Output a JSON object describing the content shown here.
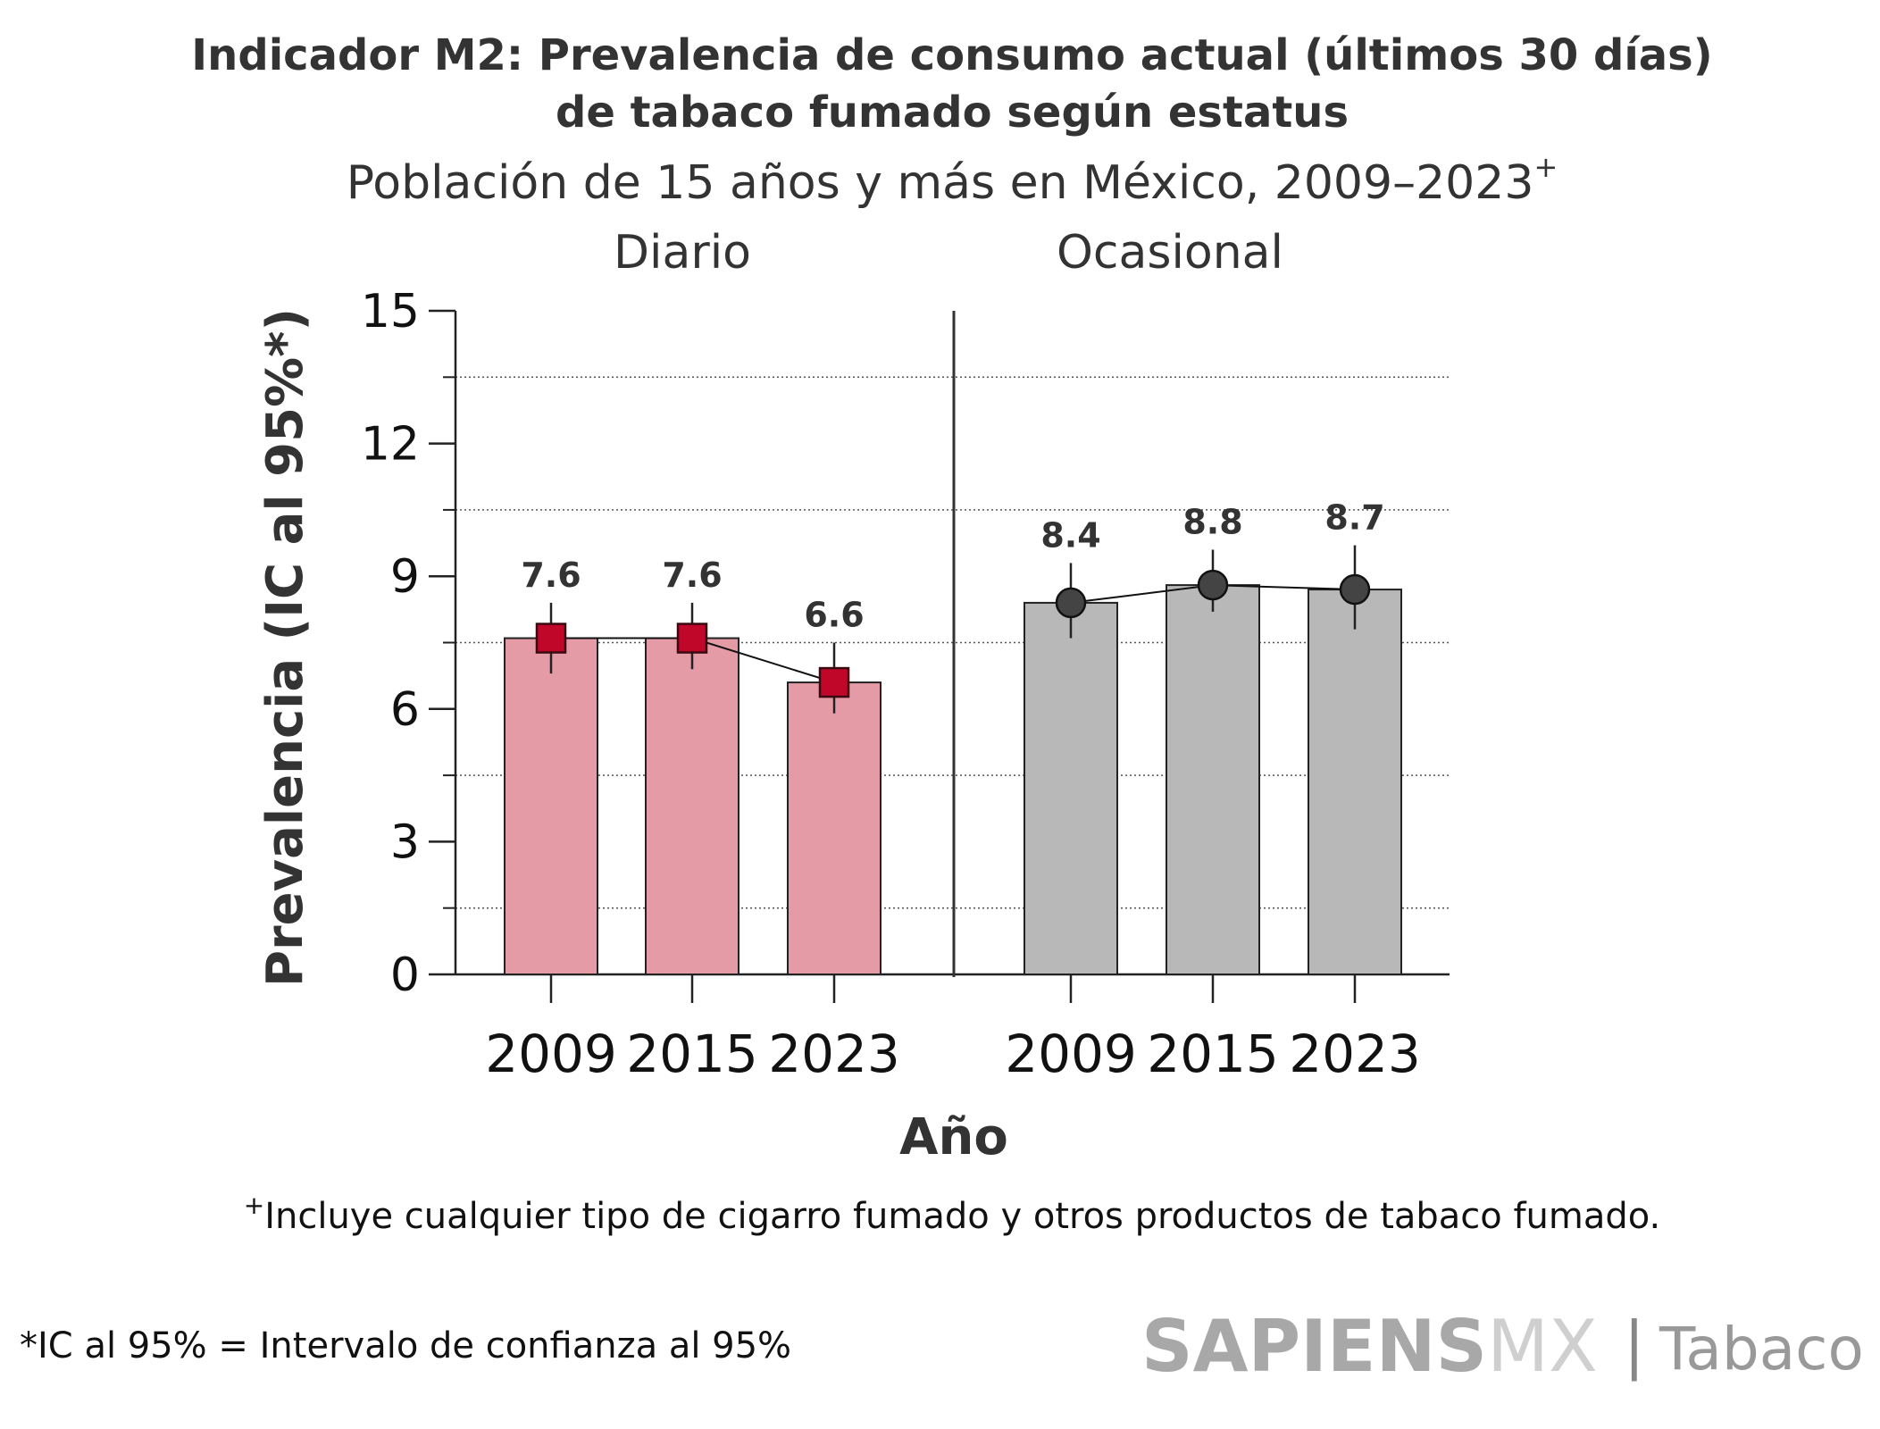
{
  "chart_data": {
    "type": "bar",
    "title": [
      "Indicador M2: Prevalencia de consumo actual (últimos 30 días)",
      "de tabaco fumado según estatus"
    ],
    "subtitle": "Población de 15 años y más en México, 2009–2023",
    "subtitle_mark": "+",
    "xlabel": "Año",
    "ylabel": "Prevalencia (IC al 95%*)",
    "ylim": [
      0,
      15
    ],
    "yticks": [
      0,
      3,
      6,
      9,
      12,
      15
    ],
    "grid": "dotted horizontal at 1.5, 4.5, 7.5, 10.5, 13.5",
    "gridlines": [
      1.5,
      4.5,
      7.5,
      10.5,
      13.5
    ],
    "panels": [
      {
        "name": "Diario",
        "categories": [
          "2009",
          "2015",
          "2023"
        ],
        "values": [
          7.6,
          7.6,
          6.6
        ],
        "ci_low": [
          6.8,
          6.9,
          5.9
        ],
        "ci_high": [
          8.4,
          8.4,
          7.5
        ],
        "labels": [
          "7.6",
          "7.6",
          "6.6"
        ],
        "bar_color": "#e49ba6",
        "marker": "square",
        "marker_color": "#c0072a"
      },
      {
        "name": "Ocasional",
        "categories": [
          "2009",
          "2015",
          "2023"
        ],
        "values": [
          8.4,
          8.8,
          8.7
        ],
        "ci_low": [
          7.6,
          8.2,
          7.8
        ],
        "ci_high": [
          9.3,
          9.6,
          9.7
        ],
        "labels": [
          "8.4",
          "8.8",
          "8.7"
        ],
        "bar_color": "#b8b8b8",
        "marker": "circle",
        "marker_color": "#444444"
      }
    ]
  },
  "footnote": "Incluye cualquier tipo de cigarro fumado y otros productos de tabaco fumado.",
  "footnote_mark": "+",
  "ic_note": "*IC al 95% = Intervalo de confianza al 95%",
  "logo": {
    "brand": "SAPIENS",
    "suffix": "MX",
    "separator": "|",
    "topic": "Tabaco"
  }
}
